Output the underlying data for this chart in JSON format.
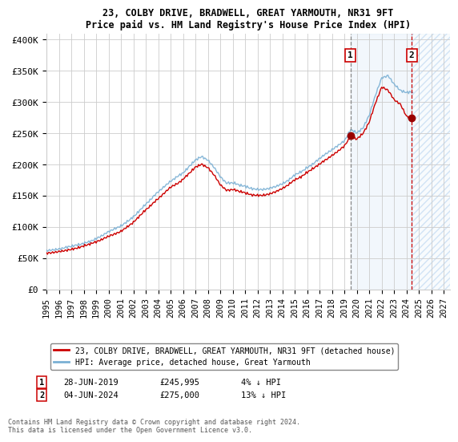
{
  "title": "23, COLBY DRIVE, BRADWELL, GREAT YARMOUTH, NR31 9FT",
  "subtitle": "Price paid vs. HM Land Registry's House Price Index (HPI)",
  "ylabel_ticks": [
    0,
    50000,
    100000,
    150000,
    200000,
    250000,
    300000,
    350000,
    400000
  ],
  "ylabel_labels": [
    "£0",
    "£50K",
    "£100K",
    "£150K",
    "£200K",
    "£250K",
    "£300K",
    "£350K",
    "£400K"
  ],
  "ylim": [
    0,
    410000
  ],
  "xlim_start": 1995.0,
  "xlim_end": 2027.5,
  "legend_line1": "23, COLBY DRIVE, BRADWELL, GREAT YARMOUTH, NR31 9FT (detached house)",
  "legend_line2": "HPI: Average price, detached house, Great Yarmouth",
  "note1_date": "28-JUN-2019",
  "note1_price": "£245,995",
  "note1_pct": "4% ↓ HPI",
  "note2_date": "04-JUN-2024",
  "note2_price": "£275,000",
  "note2_pct": "13% ↓ HPI",
  "footnote": "Contains HM Land Registry data © Crown copyright and database right 2024.\nThis data is licensed under the Open Government Licence v3.0.",
  "line_red_color": "#cc0000",
  "line_blue_color": "#7ab0d4",
  "marker1_x": 2019.49,
  "marker1_y": 245995,
  "marker2_x": 2024.42,
  "marker2_y": 275000,
  "shade_start_x": 2019.49,
  "shade_mid_x": 2024.42,
  "xtick_years": [
    1995,
    1996,
    1997,
    1998,
    1999,
    2000,
    2001,
    2002,
    2003,
    2004,
    2005,
    2006,
    2007,
    2008,
    2009,
    2010,
    2011,
    2012,
    2013,
    2014,
    2015,
    2016,
    2017,
    2018,
    2019,
    2020,
    2021,
    2022,
    2023,
    2024,
    2025,
    2026,
    2027
  ]
}
